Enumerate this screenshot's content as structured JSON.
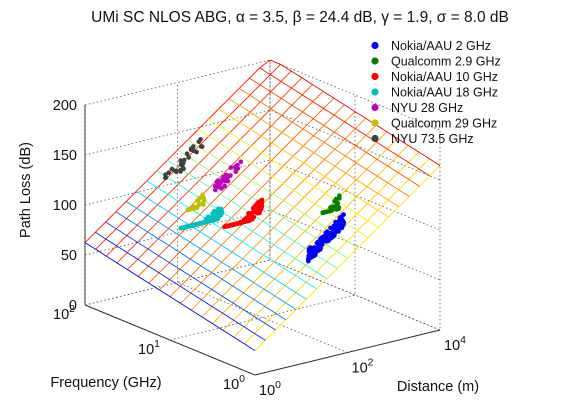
{
  "chart_data": {
    "type": "scatter",
    "title": "UMi SC NLOS ABG, α = 3.5, β = 24.4 dB, γ = 1.9, σ = 8.0 dB",
    "zlabel": "Path Loss (dB)",
    "xlabel": "Distance (m)",
    "ylabel": "Frequency (GHz)",
    "zlim": [
      0,
      200
    ],
    "xlim": [
      1,
      10000
    ],
    "ylim": [
      1,
      100
    ],
    "xscale": "log",
    "yscale": "log",
    "grid": true,
    "legend_position": "top-right",
    "z_ticks": [
      "0",
      "50",
      "100",
      "150",
      "200"
    ],
    "x_ticks": [
      {
        "base": "10",
        "exp": "0"
      },
      {
        "base": "10",
        "exp": "2"
      },
      {
        "base": "10",
        "exp": "4"
      }
    ],
    "y_ticks": [
      {
        "base": "10",
        "exp": "0"
      },
      {
        "base": "10",
        "exp": "1"
      },
      {
        "base": "10",
        "exp": "2"
      }
    ],
    "model": {
      "alpha": 3.5,
      "beta": 24.4,
      "gamma": 1.9,
      "sigma": 8.0,
      "distance_range": [
        1,
        10000
      ],
      "frequency_range": [
        1,
        100
      ]
    },
    "series": [
      {
        "name": "Nokia/AAU 2 GHz",
        "color": "#0000ff",
        "freq": 2,
        "dist": [
          50,
          300
        ],
        "pl": [
          55,
          125
        ]
      },
      {
        "name": "Qualcomm 2.9 GHz",
        "color": "#007f00",
        "freq": 2.9,
        "dist": [
          200,
          500
        ],
        "pl": [
          120,
          135
        ]
      },
      {
        "name": "Nokia/AAU 10 GHz",
        "color": "#ff0000",
        "freq": 10,
        "dist": [
          15,
          100
        ],
        "pl": [
          100,
          150
        ]
      },
      {
        "name": "Nokia/AAU 18 GHz",
        "color": "#00bfbf",
        "freq": 18,
        "dist": [
          5,
          40
        ],
        "pl": [
          95,
          145
        ]
      },
      {
        "name": "NYU 28 GHz",
        "color": "#bf00bf",
        "freq": 28,
        "dist": [
          60,
          230
        ],
        "pl": [
          110,
          160
        ]
      },
      {
        "name": "Qualcomm 29 GHz",
        "color": "#bfbf00",
        "freq": 29,
        "dist": [
          15,
          40
        ],
        "pl": [
          100,
          125
        ]
      },
      {
        "name": "NYU 73.5 GHz",
        "color": "#404040",
        "freq": 73.5,
        "dist": [
          30,
          200
        ],
        "pl": [
          115,
          170
        ]
      }
    ]
  }
}
